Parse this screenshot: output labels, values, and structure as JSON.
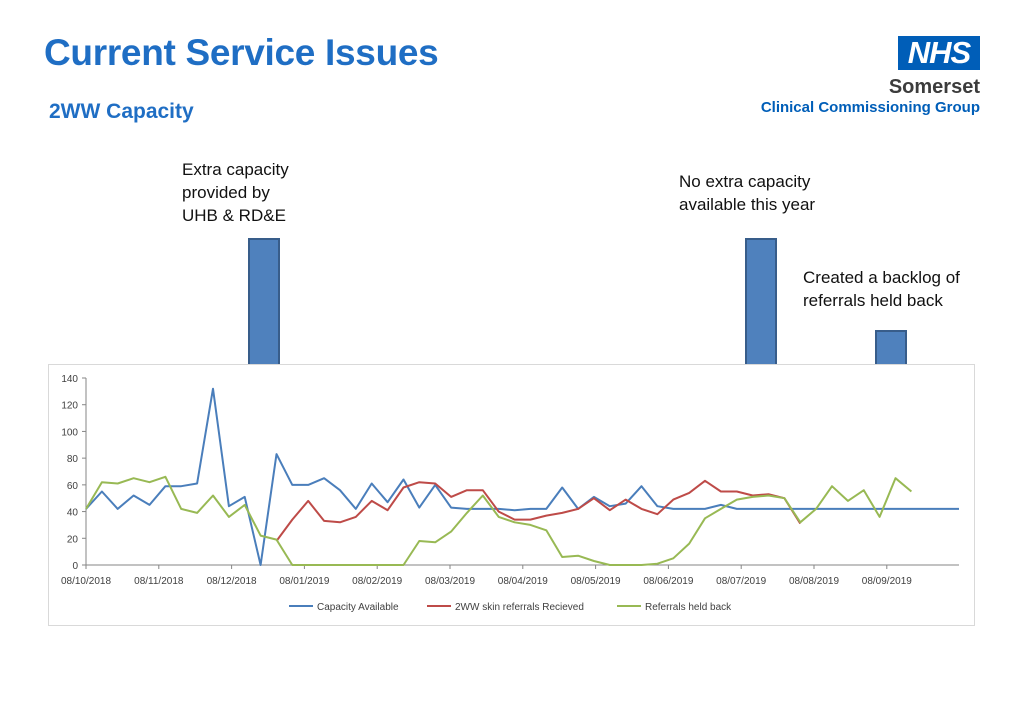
{
  "title": "Current Service Issues",
  "subtitle": "2WW Capacity",
  "logo": {
    "mark": "NHS",
    "org": "Somerset",
    "sub": "Clinical Commissioning Group",
    "brand_color": "#005eb8"
  },
  "annotations": [
    {
      "text": "Extra capacity\nprovided by\nUHB & RD&E",
      "arrow_icon": "down-arrow-icon"
    },
    {
      "text": "No extra capacity\navailable this year",
      "arrow_icon": "down-arrow-icon"
    },
    {
      "text": "Created a backlog of\nreferrals held back",
      "arrow_icon": "down-arrow-icon"
    }
  ],
  "colors": {
    "title": "#1f6ec4",
    "arrow_fill": "#4f81bd",
    "arrow_stroke": "#385d8a"
  },
  "chart_data": {
    "type": "line",
    "x_tick_labels": [
      "08/10/2018",
      "08/11/2018",
      "08/12/2018",
      "08/01/2019",
      "08/02/2019",
      "08/03/2019",
      "08/04/2019",
      "08/05/2019",
      "08/06/2019",
      "08/07/2019",
      "08/08/2019",
      "08/09/2019"
    ],
    "ylim": [
      0,
      140
    ],
    "y_ticks": [
      0,
      20,
      40,
      60,
      80,
      100,
      120,
      140
    ],
    "grid": false,
    "legend_position": "bottom",
    "series": [
      {
        "name": "Capacity Available",
        "color": "#4a7ebb",
        "values": [
          42,
          55,
          42,
          52,
          45,
          59,
          59,
          61,
          132,
          44,
          51,
          0,
          83,
          60,
          60,
          65,
          56,
          42,
          61,
          47,
          64,
          43,
          60,
          43,
          42,
          42,
          42,
          41,
          42,
          42,
          58,
          42,
          51,
          44,
          46,
          59,
          44,
          42,
          42,
          42,
          45,
          42,
          42,
          42,
          42,
          42,
          42,
          42,
          42,
          42,
          42,
          42,
          42,
          42,
          42,
          42
        ]
      },
      {
        "name": "2WW skin referrals Recieved",
        "color": "#be4b48",
        "values": [
          null,
          null,
          null,
          null,
          null,
          null,
          null,
          null,
          null,
          null,
          null,
          null,
          18,
          34,
          48,
          33,
          32,
          36,
          48,
          41,
          58,
          62,
          61,
          51,
          56,
          56,
          40,
          34,
          34,
          37,
          39,
          42,
          50,
          41,
          49,
          42,
          38,
          49,
          54,
          63,
          55,
          55,
          52,
          53,
          50,
          31,
          null,
          null,
          null,
          null,
          null,
          null,
          null,
          null,
          null,
          null
        ]
      },
      {
        "name": "Referrals held back",
        "color": "#98b954",
        "values": [
          42,
          62,
          61,
          65,
          62,
          66,
          42,
          39,
          52,
          36,
          45,
          22,
          19,
          0,
          0,
          0,
          0,
          0,
          0,
          0,
          0,
          18,
          17,
          25,
          39,
          52,
          36,
          32,
          30,
          26,
          6,
          7,
          3,
          0,
          0,
          0,
          1,
          5,
          16,
          35,
          42,
          49,
          51,
          52,
          50,
          32,
          42,
          59,
          48,
          56,
          36,
          65,
          55
        ]
      }
    ]
  }
}
